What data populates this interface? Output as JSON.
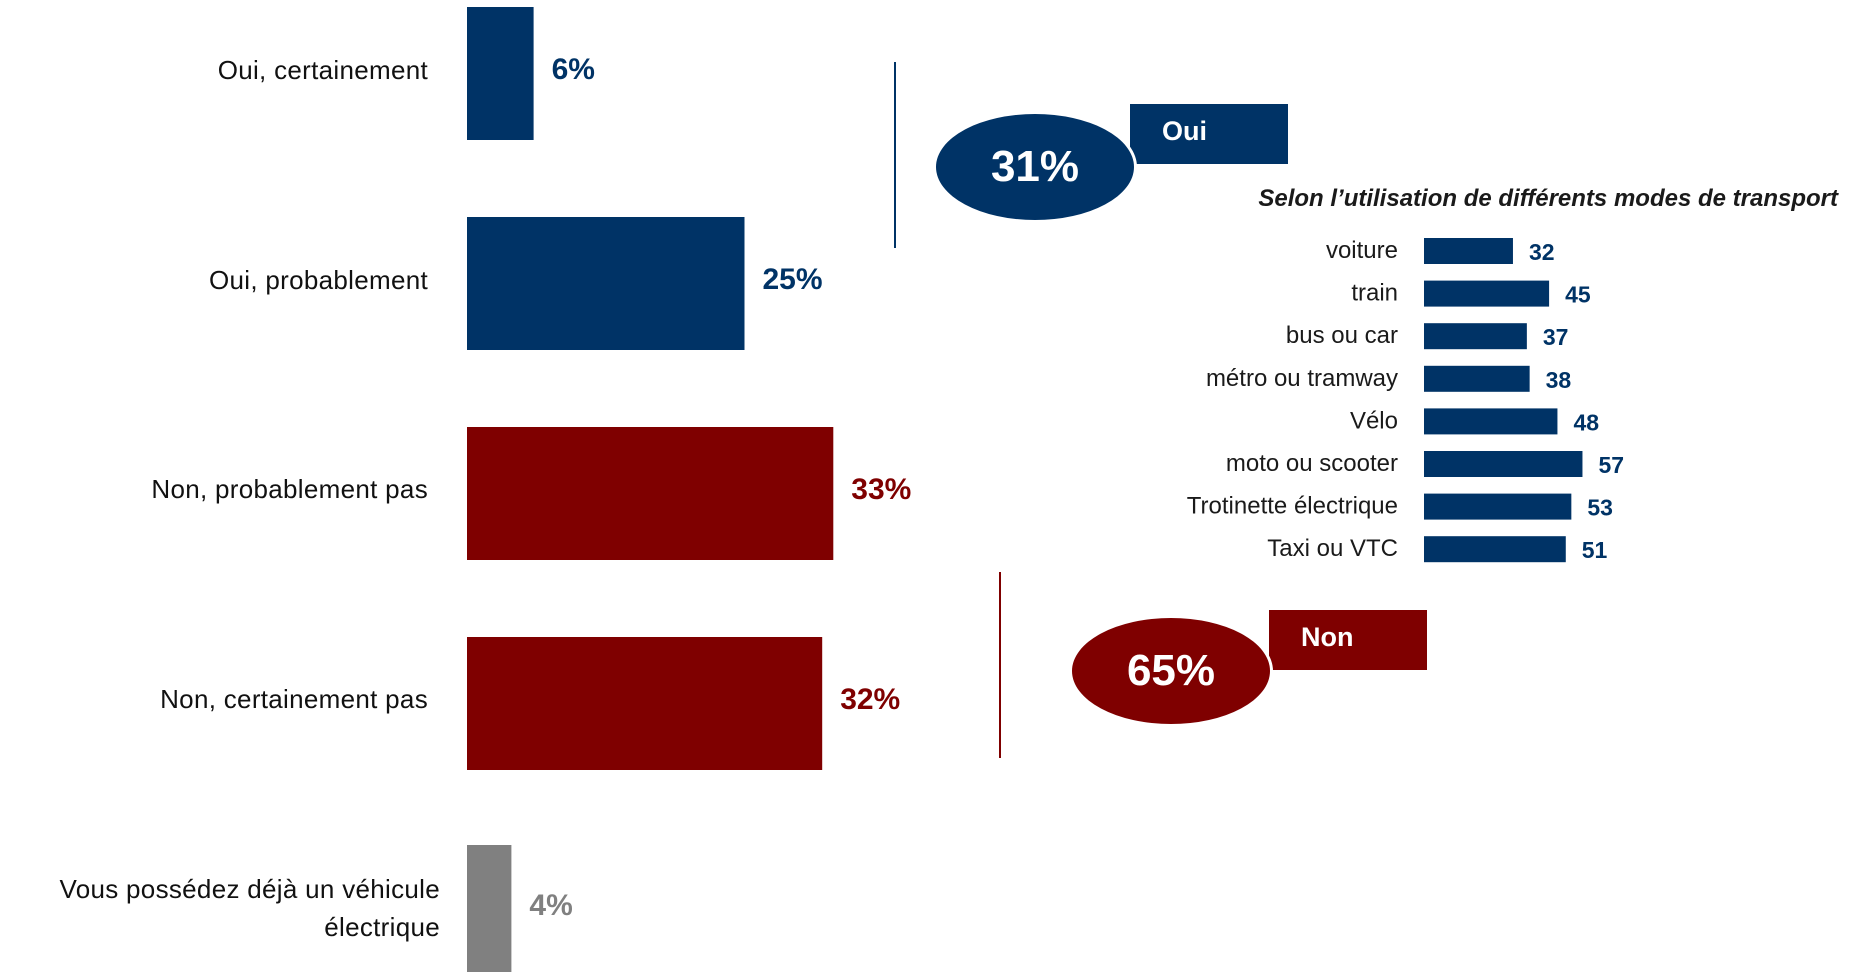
{
  "colors": {
    "oui": "#003366",
    "non": "#7f0000",
    "possede": "#808080",
    "text": "#111111"
  },
  "summary": {
    "oui": {
      "value": "31%",
      "label": "Oui"
    },
    "non": {
      "value": "65%",
      "label": "Non"
    }
  },
  "chart_data": [
    {
      "type": "bar",
      "orientation": "horizontal",
      "categories": [
        "Oui, certainement",
        "Oui, probablement",
        "Non, probablement pas",
        "Non, certainement pas",
        "Vous possédez déjà un véhicule électrique"
      ],
      "values": [
        6,
        25,
        33,
        32,
        4
      ],
      "value_labels": [
        "6%",
        "25%",
        "33%",
        "32%",
        "4%"
      ],
      "groups": [
        "oui",
        "oui",
        "non",
        "non",
        "possede"
      ],
      "xlim": [
        0,
        40
      ],
      "grid": false
    },
    {
      "type": "bar",
      "orientation": "horizontal",
      "title": "Selon l’utilisation de différents modes de transport",
      "categories": [
        "voiture",
        "train",
        "bus ou car",
        "métro ou tramway",
        "Vélo",
        "moto ou scooter",
        "Trotinette électrique",
        "Taxi ou VTC"
      ],
      "values": [
        32,
        45,
        37,
        38,
        48,
        57,
        53,
        51
      ],
      "xlim": [
        0,
        100
      ],
      "grid": false
    }
  ]
}
